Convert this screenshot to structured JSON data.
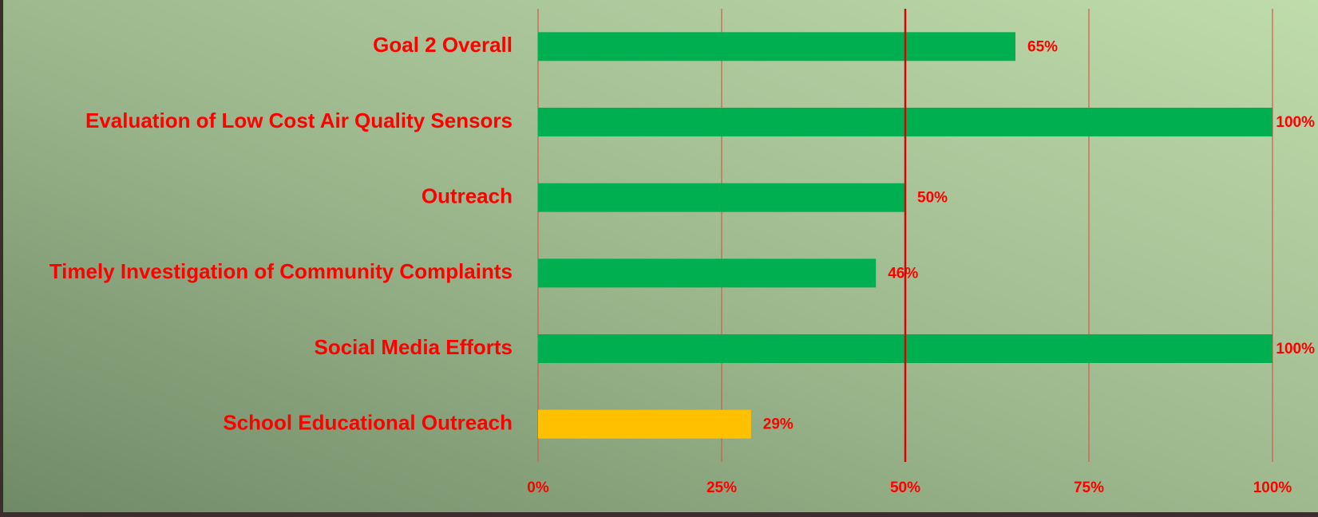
{
  "chart_data": {
    "type": "bar",
    "orientation": "horizontal",
    "categories": [
      "Goal 2 Overall",
      "Evaluation of Low Cost Air Quality Sensors",
      "Outreach",
      "Timely Investigation of Community Complaints",
      "Social Media Efforts",
      "School Educational Outreach"
    ],
    "values": [
      65,
      100,
      50,
      46,
      100,
      29
    ],
    "value_labels": [
      "65%",
      "100%",
      "50%",
      "46%",
      "100%",
      "29%"
    ],
    "colors": [
      "#00b050",
      "#00b050",
      "#00b050",
      "#00b050",
      "#00b050",
      "#ffc000"
    ],
    "xlim": [
      0,
      100
    ],
    "xticks": [
      {
        "value": 0,
        "label": "0%"
      },
      {
        "value": 25,
        "label": "25%"
      },
      {
        "value": 50,
        "label": "50%"
      },
      {
        "value": 75,
        "label": "75%"
      },
      {
        "value": 100,
        "label": "100%"
      }
    ],
    "target": 50,
    "grid": true
  }
}
